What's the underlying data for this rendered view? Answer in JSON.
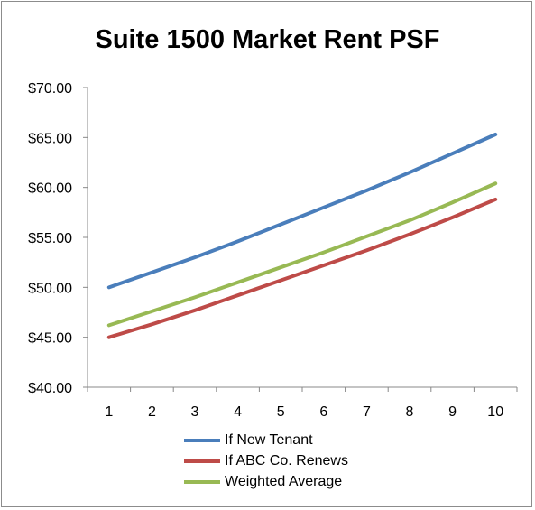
{
  "chart_data": {
    "type": "line",
    "title": "Suite 1500 Market Rent PSF",
    "x": [
      1,
      2,
      3,
      4,
      5,
      6,
      7,
      8,
      9,
      10
    ],
    "ylim": [
      40,
      70
    ],
    "y_ticks": [
      "$40.00",
      "$45.00",
      "$50.00",
      "$55.00",
      "$60.00",
      "$65.00",
      "$70.00"
    ],
    "x_ticks": [
      "1",
      "2",
      "3",
      "4",
      "5",
      "6",
      "7",
      "8",
      "9",
      "10"
    ],
    "grid": false,
    "legend_position": "bottom",
    "series": [
      {
        "name": "If New Tenant",
        "color": "#4a7ebb",
        "values": [
          50.0,
          51.5,
          53.0,
          54.6,
          56.3,
          58.0,
          59.7,
          61.5,
          63.4,
          65.3
        ]
      },
      {
        "name": "If ABC Co. Renews",
        "color": "#be4b48",
        "values": [
          45.0,
          46.3,
          47.7,
          49.2,
          50.7,
          52.2,
          53.7,
          55.3,
          57.0,
          58.8
        ]
      },
      {
        "name": "Weighted Average",
        "color": "#98b954",
        "values": [
          46.2,
          47.6,
          49.0,
          50.5,
          52.0,
          53.5,
          55.1,
          56.7,
          58.5,
          60.4
        ]
      }
    ]
  }
}
